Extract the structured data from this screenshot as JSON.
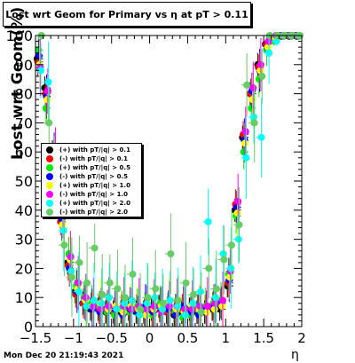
{
  "chart_data": {
    "type": "scatter",
    "title": "Lost wrt Geom for Primary vs  η at pT > 0.11",
    "xlabel": "η",
    "ylabel": "Lost wrt Geom(%)",
    "xlim": [
      -1.5,
      2
    ],
    "ylim": [
      0,
      100
    ],
    "x_ticks": [
      "−1.5",
      "−1",
      "−0.5",
      "0",
      "0.5",
      "1",
      "1.5",
      "2"
    ],
    "y_ticks": [
      "0",
      "10",
      "20",
      "30",
      "40",
      "50",
      "60",
      "70",
      "80",
      "90",
      "100"
    ],
    "grid": false,
    "legend_position": "left",
    "series": [
      {
        "name": "(+) with pT/|q| > 0.1",
        "color": "#000000",
        "x": [
          -1.45,
          -1.35,
          -1.25,
          -1.15,
          -1.05,
          -0.95,
          -0.85,
          -0.75,
          -0.65,
          -0.55,
          -0.45,
          -0.35,
          -0.25,
          -0.15,
          -0.05,
          0.05,
          0.15,
          0.25,
          0.35,
          0.45,
          0.55,
          0.65,
          0.75,
          0.85,
          0.95,
          1.05,
          1.15,
          1.25,
          1.35,
          1.45,
          1.55,
          1.65,
          1.75,
          1.85,
          1.95
        ],
        "y": [
          92,
          82,
          60,
          38,
          22,
          12,
          8,
          6,
          6,
          5,
          5,
          5,
          6,
          5,
          5,
          6,
          7,
          5,
          4,
          5,
          6,
          5,
          5,
          6,
          6,
          14,
          40,
          65,
          80,
          90,
          97,
          99,
          100,
          100,
          100
        ]
      },
      {
        "name": "(-) with pT/|q| > 0.1",
        "color": "#ff0000",
        "x": [
          -1.45,
          -1.35,
          -1.25,
          -1.15,
          -1.05,
          -0.95,
          -0.85,
          -0.75,
          -0.65,
          -0.55,
          -0.45,
          -0.35,
          -0.25,
          -0.15,
          -0.05,
          0.05,
          0.15,
          0.25,
          0.35,
          0.45,
          0.55,
          0.65,
          0.75,
          0.85,
          0.95,
          1.05,
          1.15,
          1.25,
          1.35,
          1.45,
          1.55,
          1.65,
          1.75,
          1.85,
          1.95
        ],
        "y": [
          91,
          80,
          58,
          36,
          21,
          11,
          8,
          7,
          6,
          6,
          5,
          6,
          5,
          6,
          5,
          5,
          6,
          5,
          5,
          6,
          5,
          6,
          6,
          7,
          8,
          15,
          42,
          66,
          80,
          89,
          97,
          99,
          100,
          100,
          100
        ]
      },
      {
        "name": "(+) with pT/|q| > 0.5",
        "color": "#00ee00",
        "x": [
          -1.45,
          -1.35,
          -1.25,
          -1.15,
          -1.05,
          -0.95,
          -0.85,
          -0.75,
          -0.65,
          -0.55,
          -0.45,
          -0.35,
          -0.25,
          -0.15,
          -0.05,
          0.05,
          0.15,
          0.25,
          0.35,
          0.45,
          0.55,
          0.65,
          0.75,
          0.85,
          0.95,
          1.05,
          1.15,
          1.25,
          1.35,
          1.45,
          1.55,
          1.65,
          1.75,
          1.85,
          1.95
        ],
        "y": [
          95,
          75,
          55,
          40,
          25,
          14,
          10,
          8,
          7,
          5,
          4,
          6,
          5,
          7,
          6,
          4,
          8,
          6,
          5,
          3,
          4,
          6,
          7,
          8,
          9,
          18,
          38,
          60,
          75,
          85,
          95,
          98,
          100,
          100,
          100
        ]
      },
      {
        "name": "(-) with pT/|q| > 0.5",
        "color": "#0000ff",
        "x": [
          -1.45,
          -1.35,
          -1.25,
          -1.15,
          -1.05,
          -0.95,
          -0.85,
          -0.75,
          -0.65,
          -0.55,
          -0.45,
          -0.35,
          -0.25,
          -0.15,
          -0.05,
          0.05,
          0.15,
          0.25,
          0.35,
          0.45,
          0.55,
          0.65,
          0.75,
          0.85,
          0.95,
          1.05,
          1.15,
          1.25,
          1.35,
          1.45,
          1.55,
          1.65,
          1.75,
          1.85,
          1.95
        ],
        "y": [
          93,
          79,
          61,
          37,
          20,
          12,
          9,
          6,
          5,
          6,
          6,
          4,
          6,
          5,
          7,
          5,
          6,
          6,
          4,
          7,
          5,
          4,
          6,
          7,
          8,
          16,
          41,
          64,
          81,
          88,
          96,
          99,
          100,
          100,
          100
        ]
      },
      {
        "name": "(+) with pT/|q| > 1.0",
        "color": "#ffff00",
        "x": [
          -1.45,
          -1.35,
          -1.25,
          -1.15,
          -1.05,
          -0.95,
          -0.85,
          -0.75,
          -0.65,
          -0.55,
          -0.45,
          -0.35,
          -0.25,
          -0.15,
          -0.05,
          0.05,
          0.15,
          0.25,
          0.35,
          0.45,
          0.55,
          0.65,
          0.75,
          0.85,
          0.95,
          1.05,
          1.15,
          1.25,
          1.35,
          1.45,
          1.55,
          1.65,
          1.75,
          1.85,
          1.95
        ],
        "y": [
          90,
          78,
          57,
          35,
          23,
          13,
          9,
          7,
          8,
          6,
          7,
          5,
          7,
          6,
          4,
          6,
          7,
          8,
          6,
          5,
          7,
          6,
          5,
          6,
          7,
          17,
          39,
          63,
          78,
          88,
          96,
          99,
          100,
          100,
          100
        ]
      },
      {
        "name": "(-) with pT/|q| > 1.0",
        "color": "#ff00ff",
        "x": [
          -1.45,
          -1.35,
          -1.25,
          -1.15,
          -1.05,
          -0.95,
          -0.85,
          -0.75,
          -0.65,
          -0.55,
          -0.45,
          -0.35,
          -0.25,
          -0.15,
          -0.05,
          0.05,
          0.15,
          0.25,
          0.35,
          0.45,
          0.55,
          0.65,
          0.75,
          0.85,
          0.95,
          1.05,
          1.15,
          1.25,
          1.35,
          1.45,
          1.55,
          1.65,
          1.75,
          1.85,
          1.95
        ],
        "y": [
          89,
          81,
          59,
          39,
          24,
          15,
          10,
          7,
          6,
          7,
          6,
          7,
          6,
          7,
          6,
          7,
          5,
          7,
          7,
          6,
          6,
          7,
          7,
          8,
          9,
          19,
          43,
          67,
          82,
          90,
          98,
          100,
          100,
          100,
          100
        ]
      },
      {
        "name": "(+) with pT/|q| > 2.0",
        "color": "#00ffff",
        "x": [
          -1.45,
          -1.35,
          -1.25,
          -1.15,
          -1.05,
          -0.95,
          -0.85,
          -0.75,
          -0.65,
          -0.55,
          -0.45,
          -0.35,
          -0.25,
          -0.15,
          -0.05,
          0.05,
          0.15,
          0.25,
          0.35,
          0.45,
          0.55,
          0.65,
          0.75,
          0.85,
          0.95,
          1.05,
          1.15,
          1.25,
          1.35,
          1.45,
          1.55,
          1.65,
          1.75,
          1.85,
          1.95
        ],
        "y": [
          88,
          84,
          52,
          33,
          19,
          12,
          7,
          9,
          8,
          10,
          6,
          8,
          9,
          4,
          8,
          10,
          6,
          9,
          7,
          4,
          8,
          12,
          36,
          10,
          25,
          20,
          30,
          58,
          72,
          65,
          94,
          98,
          100,
          100,
          100
        ]
      },
      {
        "name": "(-) with pT/|q| > 2.0",
        "color": "#66cc66",
        "x": [
          -1.45,
          -1.35,
          -1.25,
          -1.15,
          -1.05,
          -0.95,
          -0.85,
          -0.75,
          -0.65,
          -0.55,
          -0.45,
          -0.35,
          -0.25,
          -0.15,
          -0.05,
          0.05,
          0.15,
          0.25,
          0.35,
          0.45,
          0.55,
          0.65,
          0.75,
          0.85,
          0.95,
          1.05,
          1.15,
          1.25,
          1.35,
          1.45,
          1.55,
          1.65,
          1.75,
          1.85,
          1.95
        ],
        "y": [
          100,
          70,
          50,
          28,
          17,
          22,
          15,
          27,
          11,
          15,
          13,
          10,
          18,
          6,
          10,
          13,
          8,
          25,
          9,
          15,
          11,
          5,
          20,
          13,
          23,
          28,
          35,
          83,
          70,
          86,
          100,
          100,
          100,
          100,
          100
        ]
      }
    ]
  },
  "footer": {
    "datestamp": "Mon Dec 20 21:19:43 2021"
  }
}
